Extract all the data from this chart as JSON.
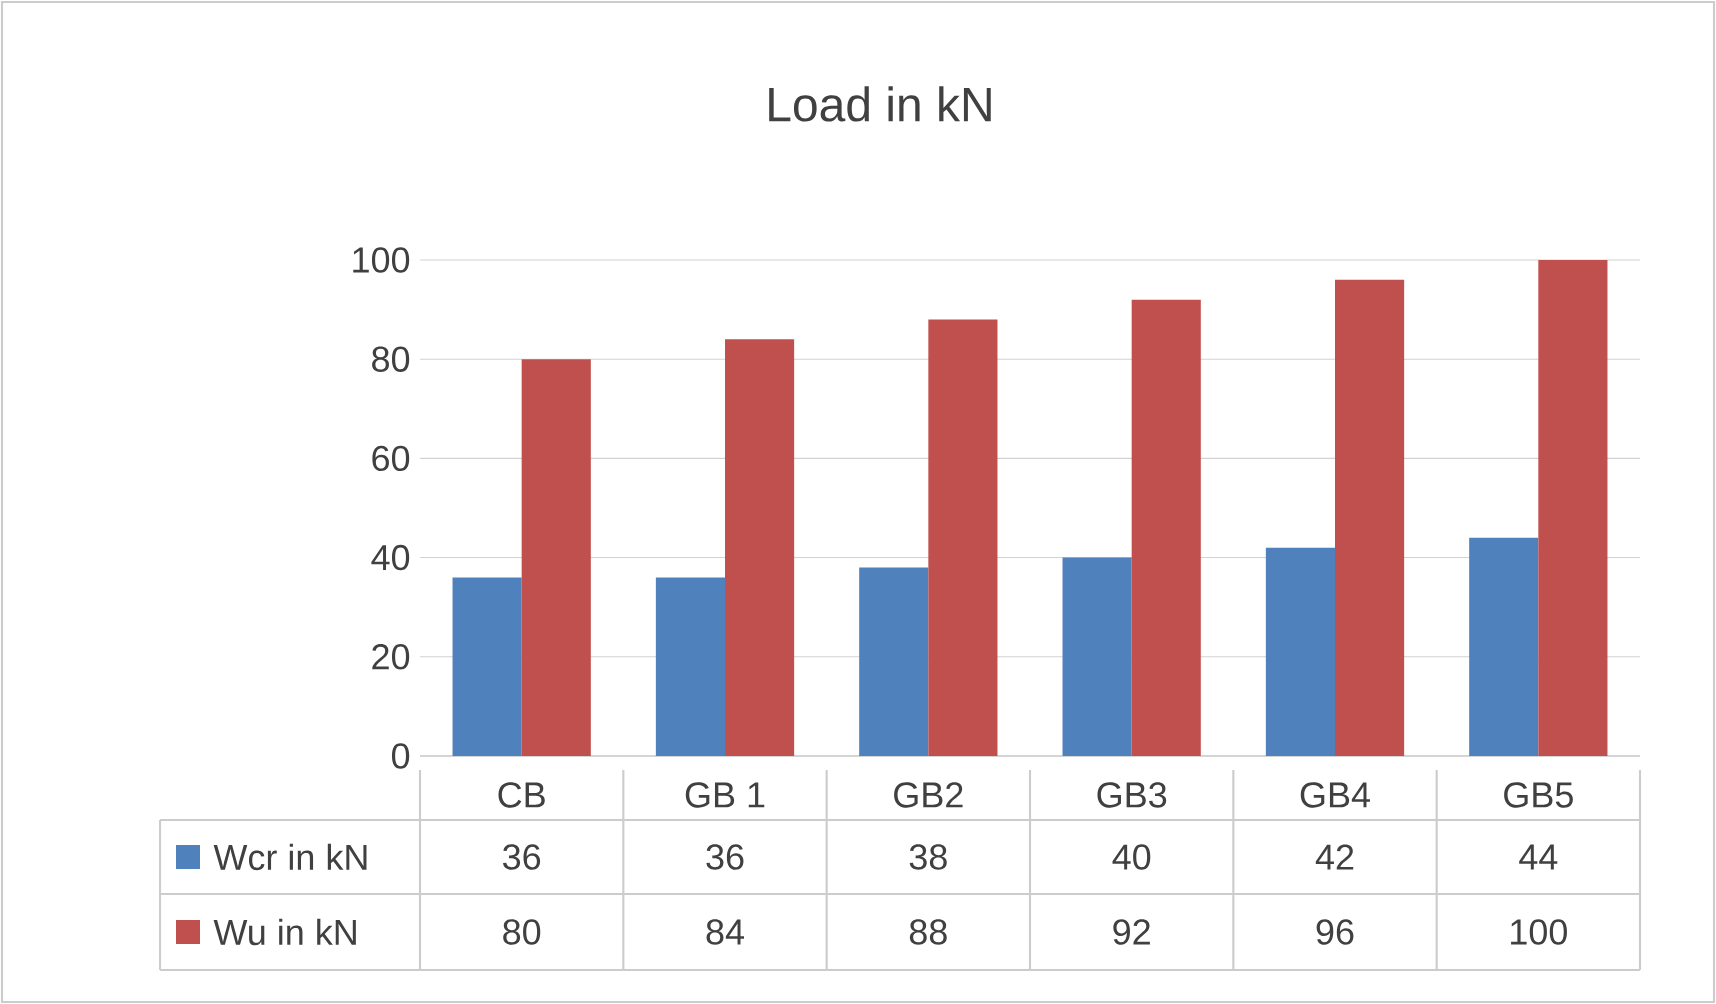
{
  "chart_data": {
    "type": "bar",
    "title": "Load in kN",
    "categories": [
      "CB",
      "GB 1",
      "GB2",
      "GB3",
      "GB4",
      "GB5"
    ],
    "series": [
      {
        "name": "Wcr in kN",
        "color": "#4f81bd",
        "values": [
          36,
          36,
          38,
          40,
          42,
          44
        ]
      },
      {
        "name": "Wu in kN",
        "color": "#c0504d",
        "values": [
          80,
          84,
          88,
          92,
          96,
          100
        ]
      }
    ],
    "ylim": [
      0,
      100
    ],
    "yticks": [
      0,
      20,
      40,
      60,
      80,
      100
    ],
    "grid": "y",
    "legend": "bottom",
    "data_labels": true
  }
}
